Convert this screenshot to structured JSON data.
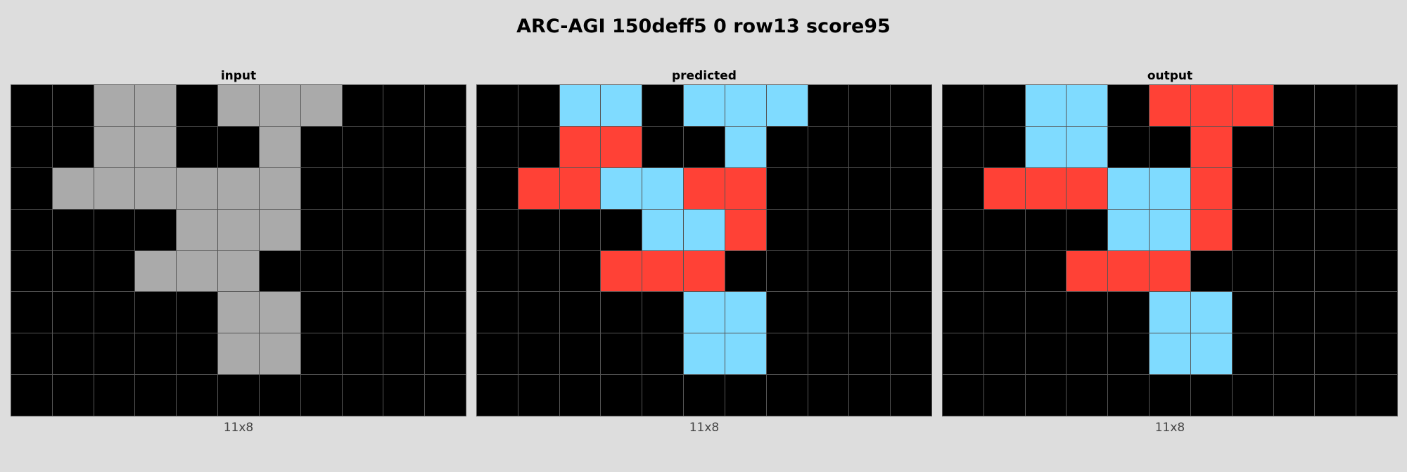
{
  "title": "ARC-AGI 150deff5 0 row13 score95",
  "colors": {
    "0": "#000000",
    "2": "#ff4136",
    "5": "#aaaaaa",
    "8": "#7fdbff",
    "background": "#dddddd",
    "gridline": "#555555"
  },
  "panels": [
    {
      "title": "input",
      "dims": "11x8",
      "grid": [
        [
          0,
          0,
          5,
          5,
          0,
          5,
          5,
          5,
          0,
          0,
          0
        ],
        [
          0,
          0,
          5,
          5,
          0,
          0,
          5,
          0,
          0,
          0,
          0
        ],
        [
          0,
          5,
          5,
          5,
          5,
          5,
          5,
          0,
          0,
          0,
          0
        ],
        [
          0,
          0,
          0,
          0,
          5,
          5,
          5,
          0,
          0,
          0,
          0
        ],
        [
          0,
          0,
          0,
          5,
          5,
          5,
          0,
          0,
          0,
          0,
          0
        ],
        [
          0,
          0,
          0,
          0,
          0,
          5,
          5,
          0,
          0,
          0,
          0
        ],
        [
          0,
          0,
          0,
          0,
          0,
          5,
          5,
          0,
          0,
          0,
          0
        ],
        [
          0,
          0,
          0,
          0,
          0,
          0,
          0,
          0,
          0,
          0,
          0
        ]
      ]
    },
    {
      "title": "predicted",
      "dims": "11x8",
      "grid": [
        [
          0,
          0,
          8,
          8,
          0,
          8,
          8,
          8,
          0,
          0,
          0
        ],
        [
          0,
          0,
          2,
          2,
          0,
          0,
          8,
          0,
          0,
          0,
          0
        ],
        [
          0,
          2,
          2,
          8,
          8,
          2,
          2,
          0,
          0,
          0,
          0
        ],
        [
          0,
          0,
          0,
          0,
          8,
          8,
          2,
          0,
          0,
          0,
          0
        ],
        [
          0,
          0,
          0,
          2,
          2,
          2,
          0,
          0,
          0,
          0,
          0
        ],
        [
          0,
          0,
          0,
          0,
          0,
          8,
          8,
          0,
          0,
          0,
          0
        ],
        [
          0,
          0,
          0,
          0,
          0,
          8,
          8,
          0,
          0,
          0,
          0
        ],
        [
          0,
          0,
          0,
          0,
          0,
          0,
          0,
          0,
          0,
          0,
          0
        ]
      ]
    },
    {
      "title": "output",
      "dims": "11x8",
      "grid": [
        [
          0,
          0,
          8,
          8,
          0,
          2,
          2,
          2,
          0,
          0,
          0
        ],
        [
          0,
          0,
          8,
          8,
          0,
          0,
          2,
          0,
          0,
          0,
          0
        ],
        [
          0,
          2,
          2,
          2,
          8,
          8,
          2,
          0,
          0,
          0,
          0
        ],
        [
          0,
          0,
          0,
          0,
          8,
          8,
          2,
          0,
          0,
          0,
          0
        ],
        [
          0,
          0,
          0,
          2,
          2,
          2,
          0,
          0,
          0,
          0,
          0
        ],
        [
          0,
          0,
          0,
          0,
          0,
          8,
          8,
          0,
          0,
          0,
          0
        ],
        [
          0,
          0,
          0,
          0,
          0,
          8,
          8,
          0,
          0,
          0,
          0
        ],
        [
          0,
          0,
          0,
          0,
          0,
          0,
          0,
          0,
          0,
          0,
          0
        ]
      ]
    }
  ]
}
